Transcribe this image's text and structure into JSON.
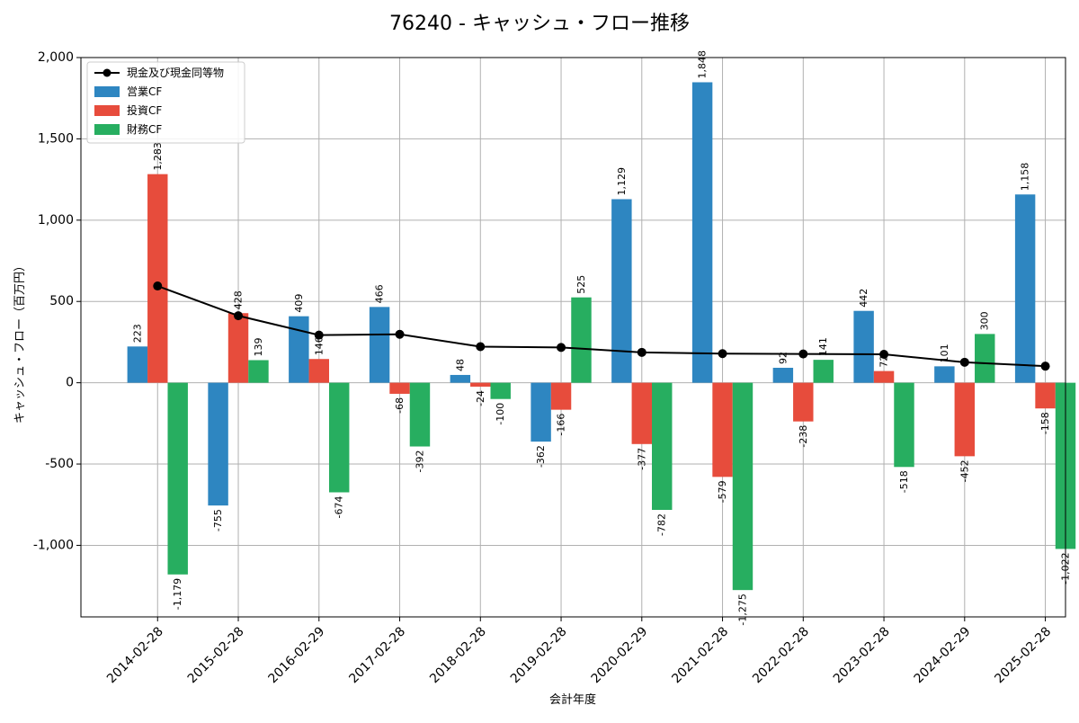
{
  "chart_data": {
    "type": "bar",
    "title": "76240 - キャッシュ・フロー推移",
    "xlabel": "会計年度",
    "ylabel": "キャッシュ・フロー（百万円）",
    "ylim": [
      -1440,
      2000
    ],
    "yticks": [
      -1000,
      -500,
      0,
      500,
      1000,
      1500,
      2000
    ],
    "ytick_labels": [
      "-1,000",
      "-500",
      "0",
      "500",
      "1,000",
      "1,500",
      "2,000"
    ],
    "grid": true,
    "legend_position": "top-left",
    "categories": [
      "2014-02-28",
      "2015-02-28",
      "2016-02-29",
      "2017-02-28",
      "2018-02-28",
      "2019-02-28",
      "2020-02-29",
      "2021-02-28",
      "2022-02-28",
      "2023-02-28",
      "2024-02-29",
      "2025-02-28"
    ],
    "series": [
      {
        "name": "営業CF",
        "type": "bar",
        "color": "#2e86c1",
        "values": [
          223,
          -755,
          409,
          466,
          48,
          -362,
          1129,
          1848,
          92,
          442,
          101,
          1158
        ],
        "labels": [
          "223",
          "-755",
          "409",
          "466",
          "48",
          "-362",
          "1,129",
          "1,848",
          "92",
          "442",
          "101",
          "1,158"
        ]
      },
      {
        "name": "投資CF",
        "type": "bar",
        "color": "#e74c3c",
        "values": [
          1283,
          428,
          146,
          -68,
          -24,
          -166,
          -377,
          -579,
          -238,
          72,
          -452,
          -158
        ],
        "labels": [
          "1,283",
          "428",
          "146",
          "-68",
          "-24",
          "-166",
          "-377",
          "-579",
          "-238",
          "72",
          "-452",
          "-158"
        ]
      },
      {
        "name": "財務CF",
        "type": "bar",
        "color": "#27ae60",
        "values": [
          -1179,
          139,
          -674,
          -392,
          -100,
          525,
          -782,
          -1275,
          141,
          -518,
          300,
          -1022
        ],
        "labels": [
          "-1,179",
          "139",
          "-674",
          "-392",
          "-100",
          "525",
          "-782",
          "-1,275",
          "141",
          "-518",
          "300",
          "-1,022"
        ]
      },
      {
        "name": "現金及び現金同等物",
        "type": "line",
        "color": "#000000",
        "values": [
          595,
          412,
          293,
          298,
          222,
          217,
          187,
          179,
          177,
          175,
          126,
          102
        ]
      }
    ]
  }
}
